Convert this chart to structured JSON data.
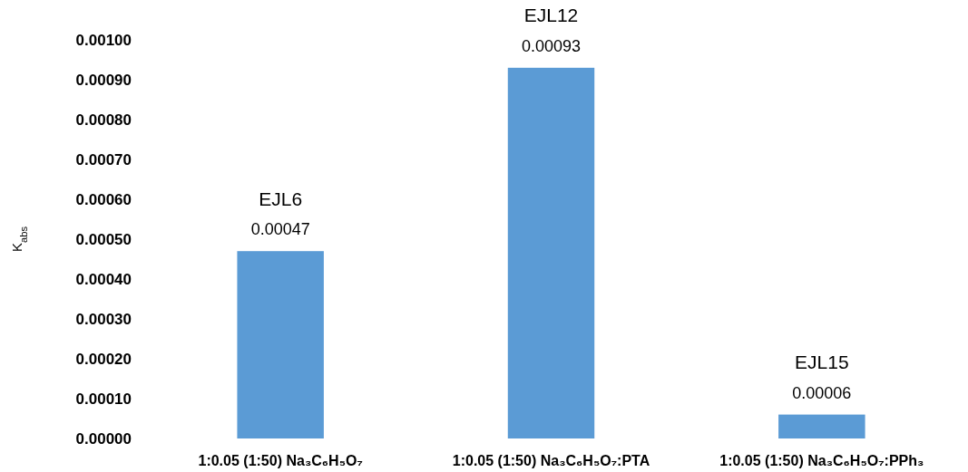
{
  "chart_data": {
    "type": "bar",
    "ylabel": "K$_{abs}$",
    "categories": [
      "1:0.05 (1:50) Na₃C₆H₅O₇",
      "1:0.05 (1:50) Na₃C₆H₅O₇:PTA",
      "1:0.05 (1:50) Na₃C₆H₅O₇:PPh₃"
    ],
    "values": [
      0.00047,
      0.00093,
      6e-05
    ],
    "value_labels": [
      "0.00047",
      "0.00093",
      "0.00006"
    ],
    "color": "#5b9bd5",
    "ylim": [
      0,
      0.001
    ],
    "yticks": [
      {
        "value": 0,
        "label": "0.00000"
      },
      {
        "value": 0.0001,
        "label": "0.00010"
      },
      {
        "value": 0.0002,
        "label": "0.00020"
      },
      {
        "value": 0.0003,
        "label": "0.00030"
      },
      {
        "value": 0.0004,
        "label": "0.00040"
      },
      {
        "value": 0.0005,
        "label": "0.00050"
      },
      {
        "value": 0.0006,
        "label": "0.00060"
      },
      {
        "value": 0.0007,
        "label": "0.00070"
      },
      {
        "value": 0.0008,
        "label": "0.00080"
      },
      {
        "value": 0.0009,
        "label": "0.00090"
      },
      {
        "value": 0.001,
        "label": "0.00100"
      }
    ],
    "annotations": [
      "EJL6",
      "EJL12",
      "EJL15"
    ],
    "grid": false
  }
}
